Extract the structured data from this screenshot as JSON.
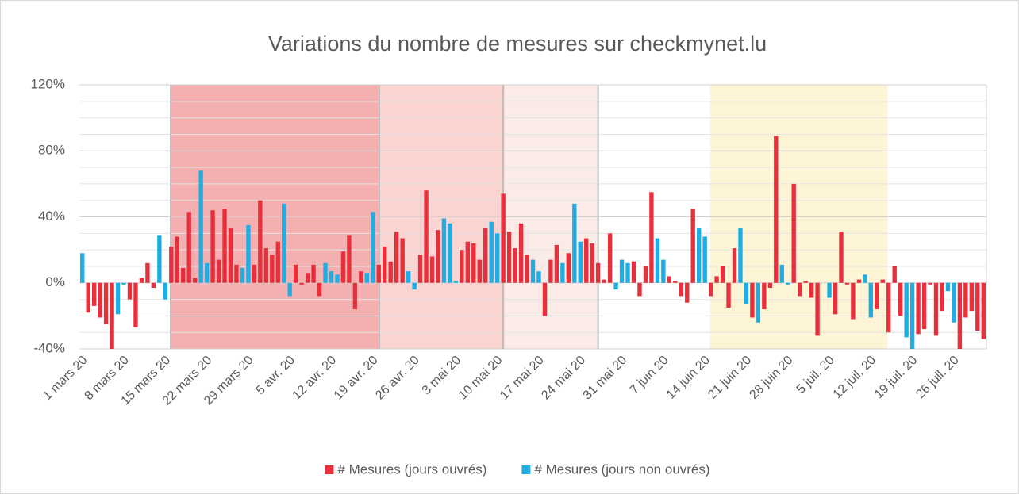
{
  "chart_data": {
    "type": "bar",
    "title": "Variations du nombre de mesures sur checkmynet.lu",
    "categories": [
      "1 mars 20",
      null,
      null,
      null,
      null,
      null,
      null,
      "8 mars 20",
      null,
      null,
      null,
      null,
      null,
      null,
      "15 mars 20",
      null,
      null,
      null,
      null,
      null,
      null,
      "22 mars 20",
      null,
      null,
      null,
      null,
      null,
      null,
      "29 mars 20",
      null,
      null,
      null,
      null,
      null,
      null,
      "5 avr. 20",
      null,
      null,
      null,
      null,
      null,
      null,
      "12 avr. 20",
      null,
      null,
      null,
      null,
      null,
      null,
      "19 avr. 20",
      null,
      null,
      null,
      null,
      null,
      null,
      "26 avr. 20",
      null,
      null,
      null,
      null,
      null,
      null,
      "3 mai 20",
      null,
      null,
      null,
      null,
      null,
      null,
      "10 mai 20",
      null,
      null,
      null,
      null,
      null,
      null,
      "17 mai 20",
      null,
      null,
      null,
      null,
      null,
      null,
      "24 mai 20",
      null,
      null,
      null,
      null,
      null,
      null,
      "31 mai 20",
      null,
      null,
      null,
      null,
      null,
      null,
      "7 juin 20",
      null,
      null,
      null,
      null,
      null,
      null,
      "14 juin 20",
      null,
      null,
      null,
      null,
      null,
      null,
      "21 juin 20",
      null,
      null,
      null,
      null,
      null,
      null,
      "28 juin 20",
      null,
      null,
      null,
      null,
      null,
      null,
      "5 juil. 20",
      null,
      null,
      null,
      null,
      null,
      null,
      "12 juil. 20",
      null,
      null,
      null,
      null,
      null,
      null,
      "19 juil. 20",
      null,
      null,
      null,
      null,
      null,
      null,
      "26 juil. 20",
      null,
      null,
      null,
      null,
      null
    ],
    "series": [
      {
        "name": "# Mesures (jours ouvrés)",
        "color": "#e8303c",
        "values": [
          null,
          -18,
          -14,
          -21,
          -25,
          -40,
          null,
          null,
          -10,
          -27,
          3,
          12,
          -3,
          null,
          null,
          22,
          28,
          9,
          43,
          3,
          null,
          null,
          44,
          14,
          45,
          33,
          11,
          null,
          null,
          11,
          50,
          21,
          17,
          25,
          null,
          null,
          11,
          -1,
          6,
          11,
          -8,
          null,
          null,
          null,
          19,
          29,
          -16,
          7,
          null,
          null,
          11,
          22,
          13,
          31,
          27,
          null,
          null,
          17,
          56,
          16,
          32,
          null,
          null,
          null,
          20,
          25,
          24,
          14,
          33,
          null,
          null,
          54,
          31,
          21,
          36,
          17,
          null,
          null,
          -20,
          14,
          23,
          null,
          18,
          null,
          null,
          27,
          24,
          12,
          2,
          30,
          null,
          null,
          null,
          13,
          -8,
          10,
          55,
          null,
          null,
          4,
          1,
          -8,
          -12,
          45,
          null,
          null,
          -8,
          4,
          10,
          -15,
          21,
          null,
          null,
          -21,
          null,
          -16,
          -3,
          89,
          null,
          null,
          60,
          -8,
          1,
          -9,
          -32,
          null,
          null,
          -19,
          31,
          -1,
          -22,
          2,
          null,
          null,
          -16,
          2,
          -30,
          10,
          -20,
          null,
          null,
          -31,
          -28,
          -1,
          -32,
          -17,
          null,
          null,
          -40,
          -21,
          -17,
          -29,
          -34
        ]
      },
      {
        "name": "# Mesures (jours non ouvrés)",
        "color": "#1fade3",
        "values": [
          18,
          null,
          null,
          null,
          null,
          null,
          -19,
          -1,
          null,
          null,
          null,
          null,
          null,
          29,
          -10,
          null,
          null,
          null,
          null,
          null,
          68,
          12,
          null,
          null,
          null,
          null,
          null,
          9,
          35,
          null,
          null,
          null,
          null,
          null,
          48,
          -8,
          null,
          null,
          null,
          null,
          null,
          12,
          7,
          5,
          null,
          null,
          null,
          null,
          6,
          43,
          null,
          null,
          null,
          null,
          null,
          7,
          -4,
          null,
          null,
          null,
          null,
          39,
          36,
          1,
          null,
          null,
          null,
          null,
          null,
          37,
          30,
          null,
          null,
          null,
          null,
          null,
          14,
          7,
          null,
          null,
          null,
          12,
          null,
          48,
          25,
          null,
          null,
          null,
          null,
          null,
          -4,
          14,
          12,
          null,
          null,
          null,
          null,
          27,
          14,
          null,
          null,
          null,
          null,
          null,
          33,
          28,
          null,
          null,
          null,
          null,
          null,
          33,
          -13,
          null,
          -24,
          null,
          null,
          null,
          11,
          -1,
          null,
          null,
          null,
          null,
          null,
          0,
          -9,
          null,
          null,
          null,
          null,
          null,
          5,
          -21,
          null,
          null,
          null,
          null,
          null,
          -33,
          -40,
          null,
          null,
          null,
          null,
          null,
          -5,
          -24,
          null,
          null,
          null,
          null,
          null
        ]
      }
    ],
    "ylim": [
      -40,
      120
    ],
    "yticks": [
      {
        "value": -40,
        "label": "-40%"
      },
      {
        "value": 0,
        "label": "0%"
      },
      {
        "value": 40,
        "label": "40%"
      },
      {
        "value": 80,
        "label": "80%"
      },
      {
        "value": 120,
        "label": "120%"
      }
    ],
    "minor_yticks": [
      -30,
      -20,
      -10,
      10,
      20,
      30,
      50,
      60,
      70,
      90,
      100,
      110
    ],
    "grid": true,
    "legend": "bottom",
    "periods": [
      {
        "start": 15.4,
        "end": 50.6,
        "color": "#f4b0b0",
        "border": true
      },
      {
        "start": 50.6,
        "end": 71.5,
        "color": "#f9d4d0",
        "border": true
      },
      {
        "start": 71.5,
        "end": 87.5,
        "color": "#fbebe6",
        "border": true
      },
      {
        "start": 106.4,
        "end": 136.3,
        "color": "#fdf3d5",
        "border": false
      }
    ]
  }
}
